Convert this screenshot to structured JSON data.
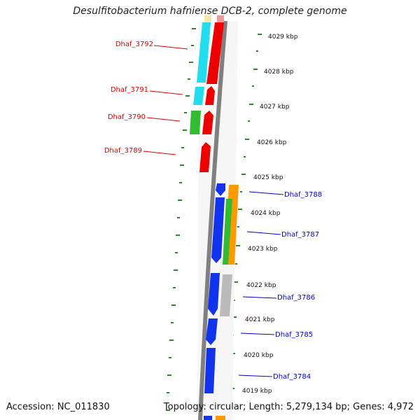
{
  "title": "Desulfitobacterium hafniense DCB-2, complete genome",
  "footer": {
    "accession": "Accession: NC_011830",
    "topology": "Topology: circular; Length: 5,279,134 bp; Genes: 4,972"
  },
  "colors": {
    "backbone": "#808080",
    "tick": "#2a8a2a",
    "label_negative": "#dd0000",
    "label_positive": "#0000cc",
    "red": "#ee0000",
    "cyan": "#22ddee",
    "green": "#33bb33",
    "blue": "#1133ee",
    "orange": "#ff9900",
    "gray": "#bbbbbb",
    "yellow": "#f4e7a8"
  },
  "scale_labels": [
    "4029 kbp",
    "4028 kbp",
    "4027 kbp",
    "4026 kbp",
    "4025 kbp",
    "4024 kbp",
    "4023 kbp",
    "4022 kbp",
    "4021 kbp",
    "4020 kbp",
    "4019 kbp"
  ],
  "genes": [
    {
      "id": "dhaf-3792",
      "label": "Dhaf_3792",
      "strand": "-"
    },
    {
      "id": "dhaf-3791",
      "label": "Dhaf_3791",
      "strand": "-"
    },
    {
      "id": "dhaf-3790",
      "label": "Dhaf_3790",
      "strand": "-"
    },
    {
      "id": "dhaf-3789",
      "label": "Dhaf_3789",
      "strand": "-"
    },
    {
      "id": "dhaf-3788",
      "label": "Dhaf_3788",
      "strand": "+"
    },
    {
      "id": "dhaf-3787",
      "label": "Dhaf_3787",
      "strand": "+"
    },
    {
      "id": "dhaf-3786",
      "label": "Dhaf_3786",
      "strand": "+"
    },
    {
      "id": "dhaf-3785",
      "label": "Dhaf_3785",
      "strand": "+"
    },
    {
      "id": "dhaf-3784",
      "label": "Dhaf_3784",
      "strand": "+"
    }
  ]
}
